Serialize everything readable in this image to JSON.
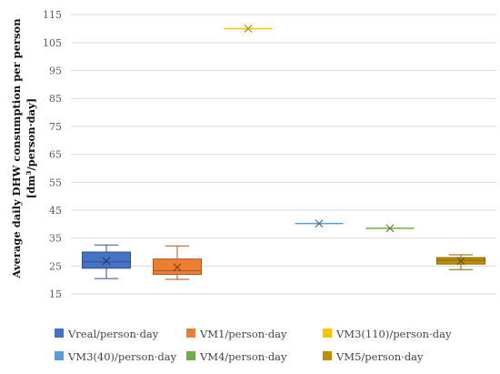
{
  "chart_data": {
    "type": "box",
    "ylabel_line1": "Average daily DHW consumption per person",
    "ylabel_line2": "[dm³/person·day]",
    "ylim": [
      15,
      117
    ],
    "yticks": [
      15,
      25,
      35,
      45,
      55,
      65,
      75,
      85,
      95,
      105,
      115
    ],
    "grid": true,
    "legend_position": "bottom",
    "series": [
      {
        "name": "Vreal/person·day",
        "color": "#4472C4",
        "min": 20.5,
        "q1": 24.2,
        "median": 26.5,
        "q3": 30,
        "max": 32.5,
        "mean": 26.8
      },
      {
        "name": "VM1/person·day",
        "color": "#ED7D31",
        "min": 20.2,
        "q1": 22.0,
        "median": 23.3,
        "q3": 27.5,
        "max": 32.2,
        "mean": 24.5
      },
      {
        "name": "VM3(110)/person·day",
        "color": "#FFC000",
        "min": 110,
        "q1": 110,
        "median": 110,
        "q3": 110,
        "max": 110,
        "mean": 110
      },
      {
        "name": "VM3(40)/person·day",
        "color": "#5B9BD5",
        "min": 40.2,
        "q1": 40.2,
        "median": 40.2,
        "q3": 40.2,
        "max": 40.2,
        "mean": 40.2
      },
      {
        "name": "VM4/person·day",
        "color": "#70AD47",
        "min": 38.5,
        "q1": 38.5,
        "median": 38.5,
        "q3": 38.5,
        "max": 38.5,
        "mean": 38.5
      },
      {
        "name": "VM5/person·day",
        "color": "#BF8F00",
        "min": 23.7,
        "q1": 25.7,
        "median": 27,
        "q3": 28,
        "max": 29,
        "mean": 26.8
      }
    ]
  }
}
